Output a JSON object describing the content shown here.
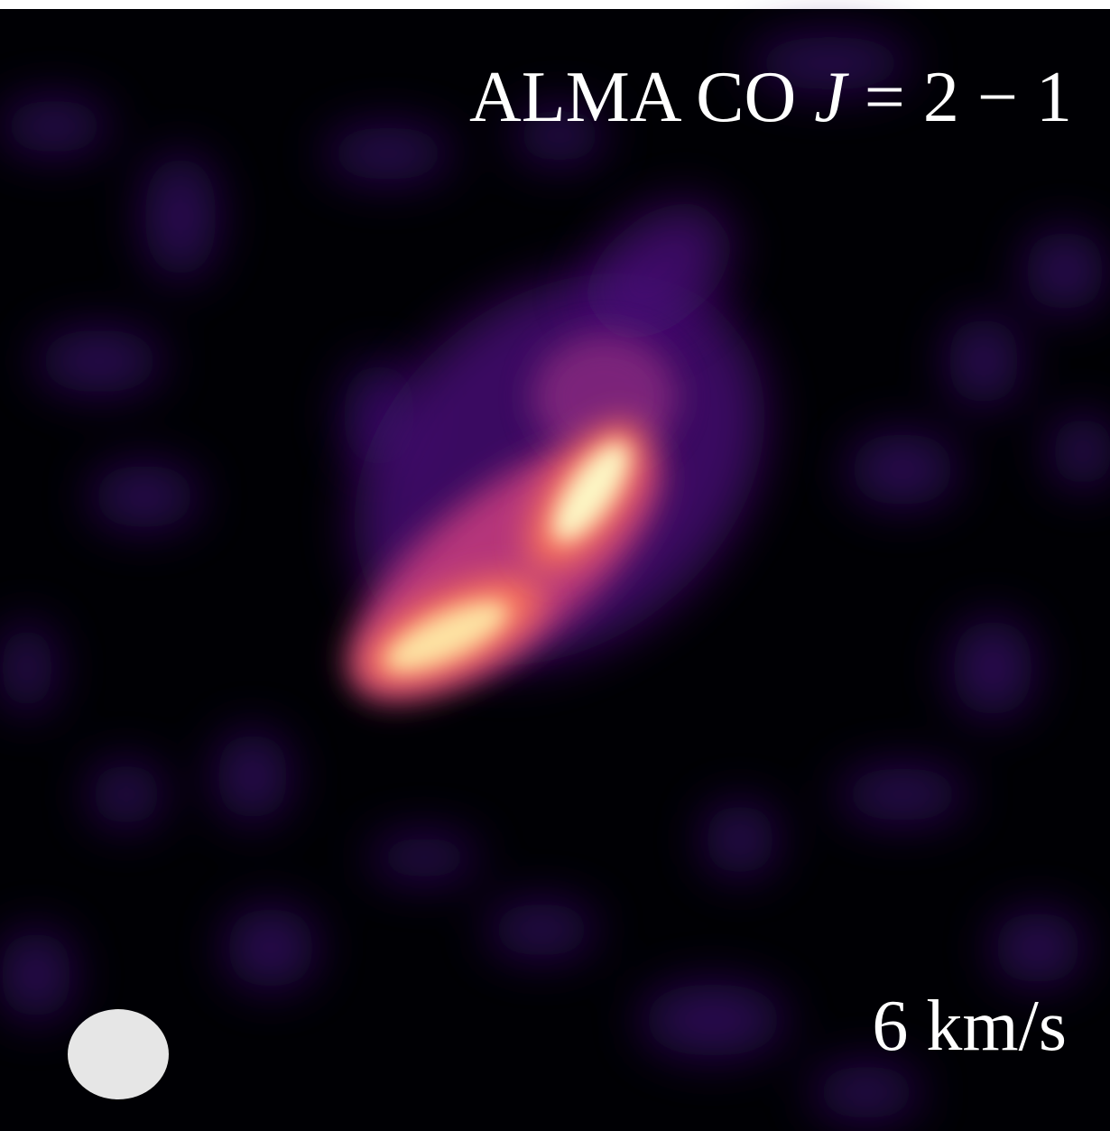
{
  "label": {
    "prefix": "ALMA CO",
    "variable": "J",
    "relation": "= 2 − 1"
  },
  "velocity": "6 km/s"
}
